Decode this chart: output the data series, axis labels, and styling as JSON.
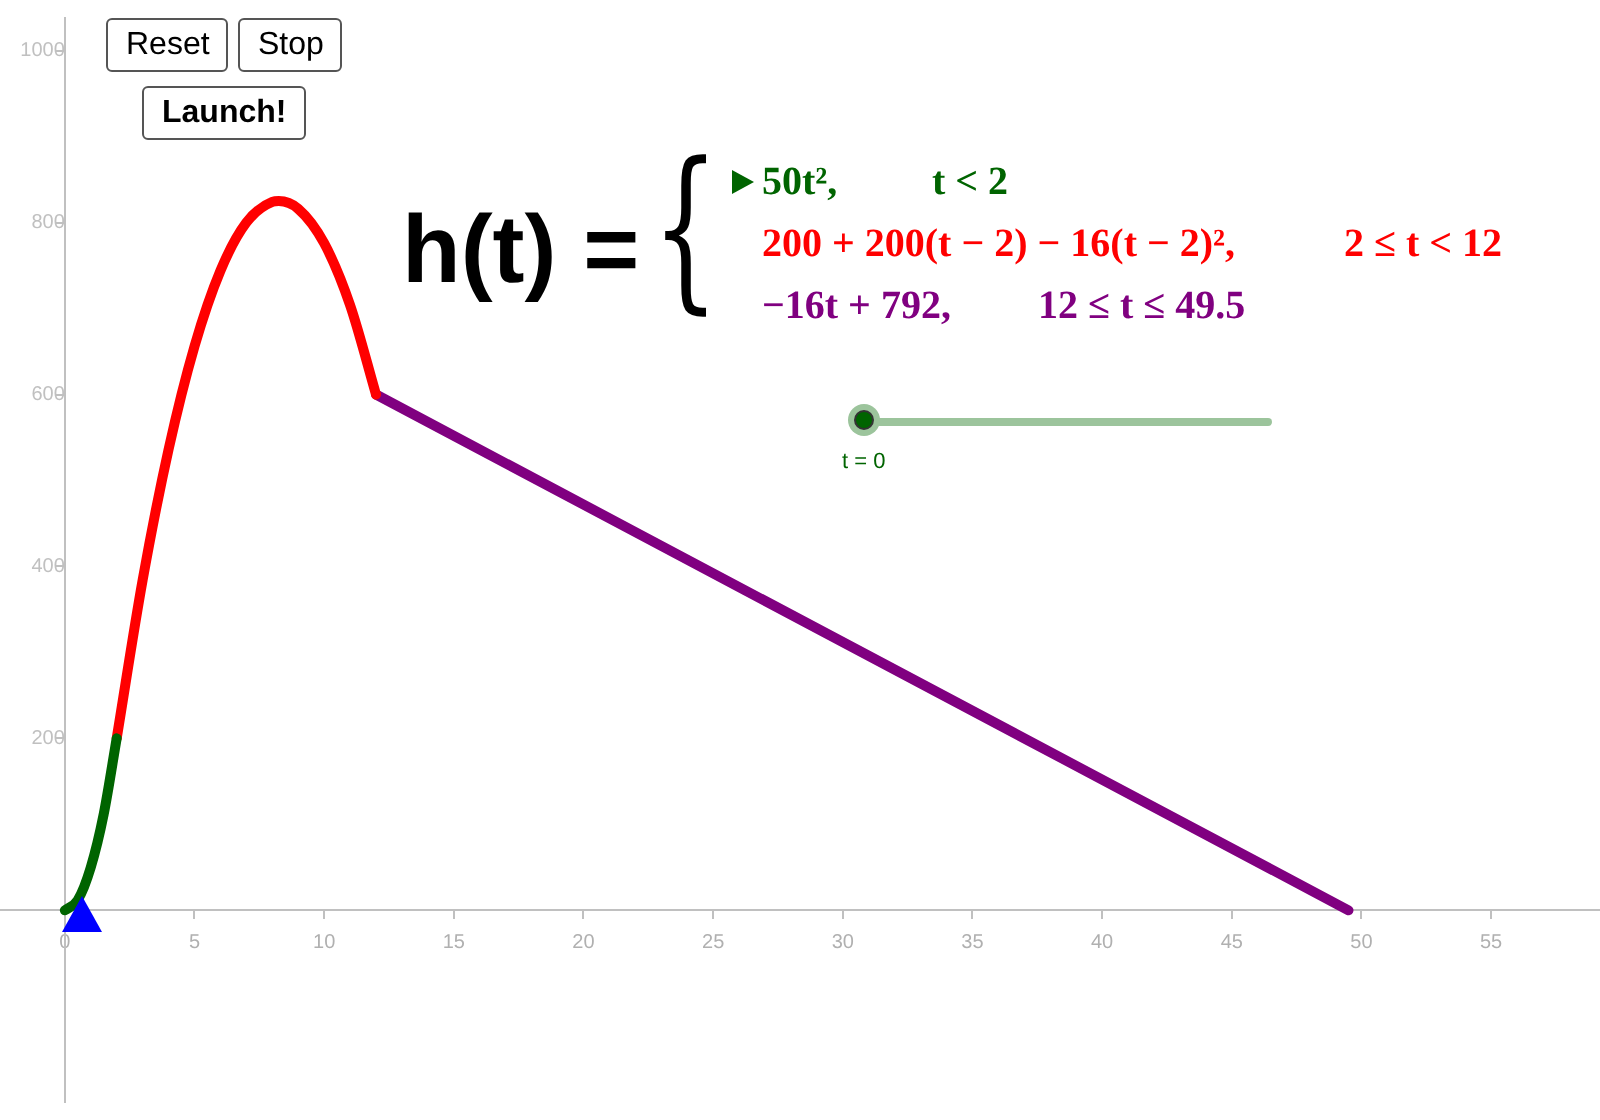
{
  "chart_data": {
    "type": "line",
    "series": [
      {
        "color": "#006400",
        "x": [
          0,
          0.5,
          1,
          1.5,
          2
        ],
        "values": [
          0,
          12,
          50,
          112,
          200
        ]
      },
      {
        "color": "#ff0000",
        "x": [
          2,
          3,
          4,
          5,
          6,
          7,
          8,
          8.25,
          9,
          10,
          11,
          12
        ],
        "values": [
          200,
          384,
          536,
          656,
          744,
          800,
          824,
          825,
          816,
          776,
          704,
          600
        ]
      },
      {
        "color": "#800080",
        "x": [
          12,
          49.5
        ],
        "values": [
          600,
          0
        ]
      }
    ],
    "xlim": [
      -2.5,
      59.2
    ],
    "ylim": [
      -223,
      1038
    ],
    "xticks": [
      0,
      5,
      10,
      15,
      20,
      25,
      30,
      35,
      40,
      45,
      50,
      55
    ],
    "yticks": [
      200,
      400,
      600,
      800,
      1000
    ],
    "grid": false,
    "legend": false,
    "marker": "none",
    "line_style": "solid",
    "annotations": [
      "Reset",
      "Stop",
      "Launch!",
      "h(t) =",
      "{",
      "50t²,",
      "t < 2",
      "200 + 200(t − 2) − 16(t − 2)²,",
      "2 ≤ t < 12",
      "−16t + 792,",
      "12 ≤ t ≤ 49.5",
      "t = 0"
    ]
  }
}
